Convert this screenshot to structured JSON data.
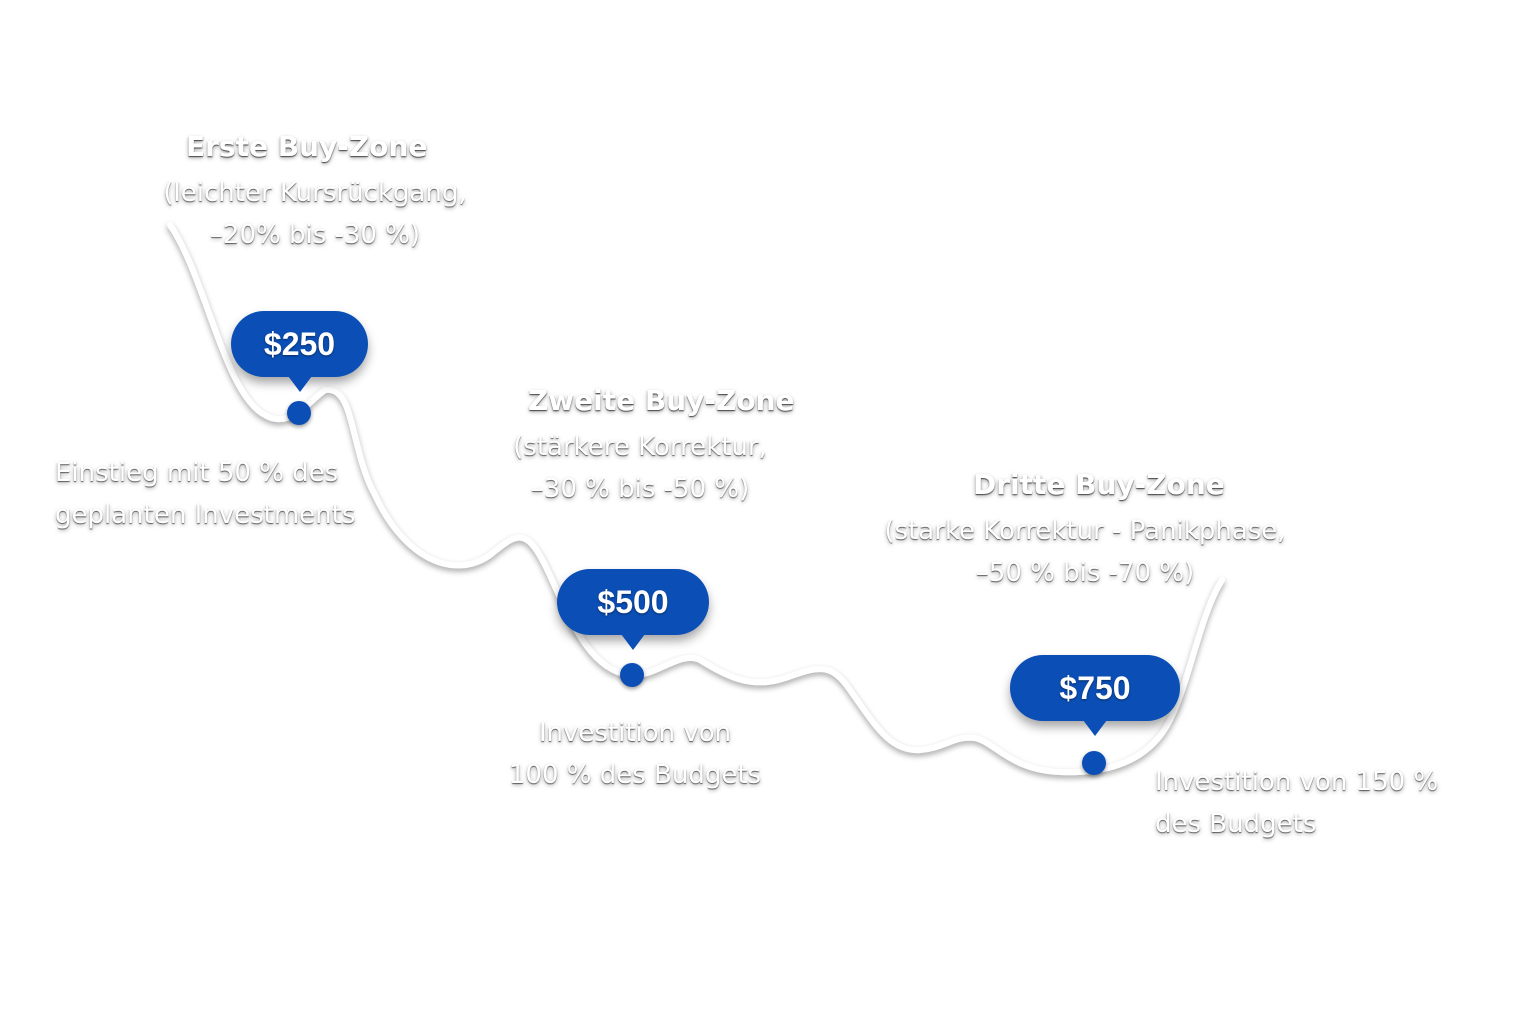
{
  "colors": {
    "accent": "#0b4fb6",
    "curve": "#ffffff",
    "text": "#ffffff",
    "background": "#ffffff"
  },
  "zones": [
    {
      "title": "Erste Buy-Zone",
      "desc_line1": "(leichter Kursrückgang,",
      "desc_line2": "–20% bis -30 %)",
      "amount": "$250",
      "invest_line1": "Einstieg mit 50 % des",
      "invest_line2": "geplanten Investments"
    },
    {
      "title": "Zweite Buy-Zone",
      "desc_line1": "(stärkere Korrektur,",
      "desc_line2": "–30 % bis -50 %)",
      "amount": "$500",
      "invest_line1": "Investition von",
      "invest_line2": "100 % des Budgets"
    },
    {
      "title": "Dritte Buy-Zone",
      "desc_line1": "(starke Korrektur - Panikphase,",
      "desc_line2": "–50 % bis -70 %)",
      "amount": "$750",
      "invest_line1": "Investition von 150 %",
      "invest_line2": "des Budgets"
    }
  ]
}
